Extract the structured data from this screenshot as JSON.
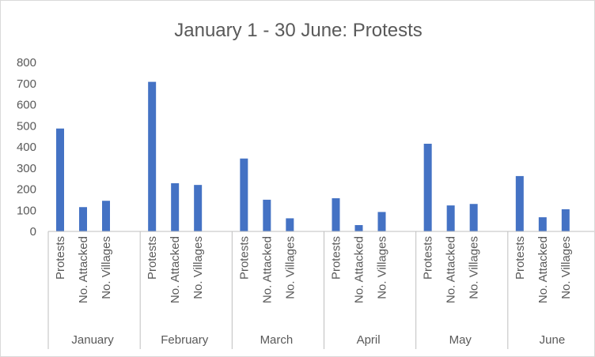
{
  "chart_data": {
    "type": "bar",
    "title": "January 1 - 30 June: Protests",
    "xlabel": "",
    "ylabel": "",
    "ylim": [
      0,
      800
    ],
    "yticks": [
      0,
      100,
      200,
      300,
      400,
      500,
      600,
      700,
      800
    ],
    "grid": false,
    "legend": "none",
    "bar_color": "#4472c4",
    "groups": [
      {
        "name": "January",
        "categories": [
          "Protests",
          "No. Attacked",
          "No. Villages"
        ],
        "values": [
          487,
          115,
          145
        ]
      },
      {
        "name": "February",
        "categories": [
          "Protests",
          "No. Attacked",
          "No. Villages"
        ],
        "values": [
          708,
          228,
          220
        ]
      },
      {
        "name": "March",
        "categories": [
          "Protests",
          "No. Attacked",
          "No. Villages"
        ],
        "values": [
          345,
          150,
          62
        ]
      },
      {
        "name": "April",
        "categories": [
          "Protests",
          "No. Attacked",
          "No. Villages"
        ],
        "values": [
          157,
          30,
          92
        ]
      },
      {
        "name": "May",
        "categories": [
          "Protests",
          "No. Attacked",
          "No. Villages"
        ],
        "values": [
          415,
          123,
          130
        ]
      },
      {
        "name": "June",
        "categories": [
          "Protests",
          "No. Attacked",
          "No. Villages"
        ],
        "values": [
          262,
          67,
          105
        ]
      }
    ]
  }
}
